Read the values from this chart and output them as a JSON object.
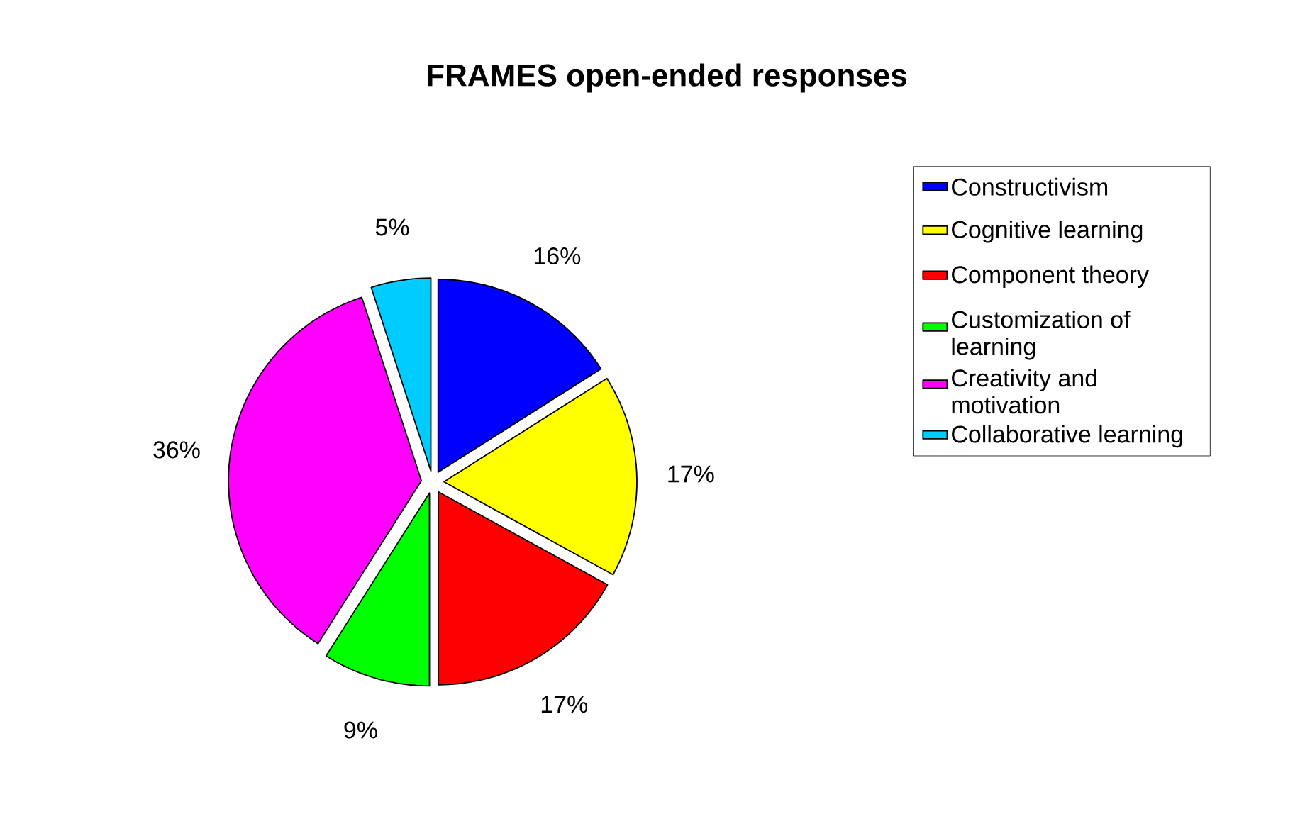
{
  "chart_data": {
    "type": "pie",
    "title": "FRAMES open-ended responses",
    "categories": [
      "Constructivism",
      "Cognitive learning",
      "Component theory",
      "Customization of learning",
      "Creativity and motivation",
      "Collaborative learning"
    ],
    "values": [
      16,
      17,
      17,
      9,
      36,
      5
    ],
    "value_labels": [
      "16%",
      "17%",
      "17%",
      "9%",
      "36%",
      "5%"
    ],
    "colors": [
      "#0000ff",
      "#ffff00",
      "#ff0000",
      "#00ff00",
      "#ff00ff",
      "#00ccff"
    ],
    "legend": "right"
  }
}
